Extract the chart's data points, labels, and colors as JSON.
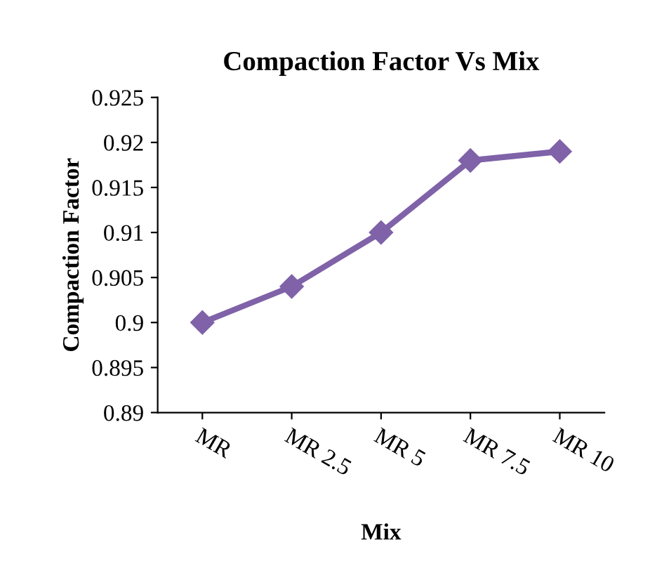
{
  "chart_data": {
    "type": "line",
    "title": "Compaction Factor Vs Mix",
    "xlabel": "Mix",
    "ylabel": "Compaction Factor",
    "categories": [
      "MR",
      "MR 2.5",
      "MR 5",
      "MR 7.5",
      "MR 10"
    ],
    "series": [
      {
        "color": "#7f62a8",
        "values": [
          0.9,
          0.904,
          0.91,
          0.918,
          0.919
        ]
      }
    ],
    "ylim": [
      0.89,
      0.925
    ],
    "yticks": [
      0.89,
      0.895,
      0.9,
      0.905,
      0.91,
      0.915,
      0.92,
      0.925
    ],
    "marker": "diamond",
    "line_style": "solid",
    "grid": false,
    "legend": false
  }
}
